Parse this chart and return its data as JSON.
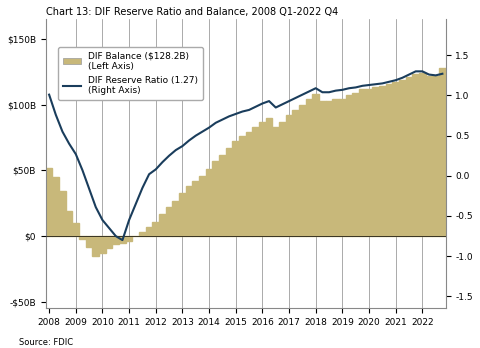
{
  "title": "Chart 13: DIF Reserve Ratio and Balance, 2008 Q1-2022 Q4",
  "legend_balance": "DIF Balance ($128.2B)\n(Left Axis)",
  "legend_ratio": "DIF Reserve Ratio (1.27)\n(Right Axis)",
  "bar_color": "#c8b87a",
  "line_color": "#1a3d5c",
  "background_color": "#ffffff",
  "ylim_left": [
    -55,
    165
  ],
  "ylim_right": [
    -1.65,
    1.95
  ],
  "yticks_left": [
    -50,
    0,
    50,
    100,
    150
  ],
  "yticks_right": [
    -1.5,
    -1.0,
    -0.5,
    0.0,
    0.5,
    1.0,
    1.5
  ],
  "dif_balance": [
    52,
    45,
    34,
    19,
    10,
    -2,
    -8,
    -15,
    -13,
    -9,
    -6,
    -5,
    -4,
    0,
    3,
    7,
    11,
    17,
    22,
    27,
    33,
    38,
    42,
    46,
    51,
    57,
    62,
    67,
    72,
    76,
    79,
    83,
    87,
    90,
    83,
    87,
    92,
    96,
    100,
    104,
    108,
    103,
    103,
    104,
    104,
    107,
    109,
    112,
    112,
    113,
    114,
    116,
    117,
    119,
    121,
    123,
    124,
    122,
    122,
    128
  ],
  "dif_ratio": [
    1.01,
    0.76,
    0.55,
    0.4,
    0.27,
    0.07,
    -0.16,
    -0.39,
    -0.55,
    -0.65,
    -0.75,
    -0.8,
    -0.55,
    -0.35,
    -0.15,
    0.02,
    0.08,
    0.17,
    0.25,
    0.32,
    0.37,
    0.44,
    0.5,
    0.55,
    0.6,
    0.66,
    0.7,
    0.74,
    0.77,
    0.8,
    0.82,
    0.86,
    0.9,
    0.93,
    0.85,
    0.89,
    0.93,
    0.97,
    1.01,
    1.05,
    1.09,
    1.04,
    1.04,
    1.06,
    1.07,
    1.09,
    1.1,
    1.12,
    1.13,
    1.14,
    1.15,
    1.17,
    1.19,
    1.22,
    1.26,
    1.3,
    1.3,
    1.26,
    1.25,
    1.27
  ],
  "xtick_positions": [
    0,
    4,
    8,
    12,
    16,
    20,
    24,
    28,
    32,
    36,
    40,
    44,
    48,
    52,
    56
  ],
  "xtick_labels": [
    "2008",
    "2009",
    "2010",
    "2011",
    "2012",
    "2013",
    "2014",
    "2015",
    "2016",
    "2017",
    "2018",
    "2019",
    "2020",
    "2021",
    "2022"
  ],
  "vline_positions": [
    4,
    8,
    12,
    16,
    20,
    24,
    28,
    32,
    36,
    40,
    44,
    48,
    52,
    56
  ],
  "title_fontsize": 7,
  "tick_fontsize": 6.5,
  "legend_fontsize": 6.5,
  "source_text": "Source: FDIC"
}
